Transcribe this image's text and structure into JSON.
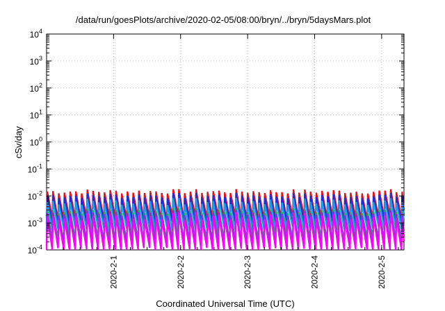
{
  "chart_data": {
    "type": "line",
    "title": "/data/run/goesPlots/archive/2020-02-05/08:00/bryn/../bryn/5daysMars.plot",
    "xlabel": "Coordinated Universal Time (UTC)",
    "ylabel": "cSv/day",
    "y_scale": "log",
    "ylim": [
      0.0001,
      10000
    ],
    "xlim": [
      "2020-01-31T00:00",
      "2020-02-05T08:00"
    ],
    "x_ticks": [
      {
        "label": "2020-2-1",
        "date": "2020-02-01"
      },
      {
        "label": "2020-2-2",
        "date": "2020-02-02"
      },
      {
        "label": "2020-2-3",
        "date": "2020-02-03"
      },
      {
        "label": "2020-2-4",
        "date": "2020-02-04"
      },
      {
        "label": "2020-2-5",
        "date": "2020-02-05"
      }
    ],
    "y_ticks": [
      {
        "base": "10",
        "exp": "-4"
      },
      {
        "base": "10",
        "exp": "-3"
      },
      {
        "base": "10",
        "exp": "-2"
      },
      {
        "base": "10",
        "exp": "-1"
      },
      {
        "base": "10",
        "exp": "0"
      },
      {
        "base": "10",
        "exp": "1"
      },
      {
        "base": "10",
        "exp": "2"
      },
      {
        "base": "10",
        "exp": "3"
      },
      {
        "base": "10",
        "exp": "4"
      }
    ],
    "grid": true,
    "pattern": "sawtooth, one cycle per Mars orbit (~2 h); each series rises to its peak then decays until the next cycle",
    "series": [
      {
        "color": "#e8101a",
        "peak_min": 0.012,
        "peak_max": 0.018,
        "trough": 0.0015
      },
      {
        "color": "#1e2ce0",
        "peak_min": 0.008,
        "peak_max": 0.013,
        "trough": 0.0009
      },
      {
        "color": "#1a9ee8",
        "peak_min": 0.0045,
        "peak_max": 0.0085,
        "trough": 0.0006
      },
      {
        "color": "#1aa86a",
        "peak_min": 0.0022,
        "peak_max": 0.0035,
        "trough": 0.00025
      },
      {
        "color": "#8a2be2",
        "peak_min": 0.0018,
        "peak_max": 0.003,
        "trough": 0.00015
      },
      {
        "color": "#ff00ff",
        "peak_min": 0.0012,
        "peak_max": 0.0025,
        "trough": 0.0001
      }
    ],
    "cycle_hours": 2.05
  }
}
